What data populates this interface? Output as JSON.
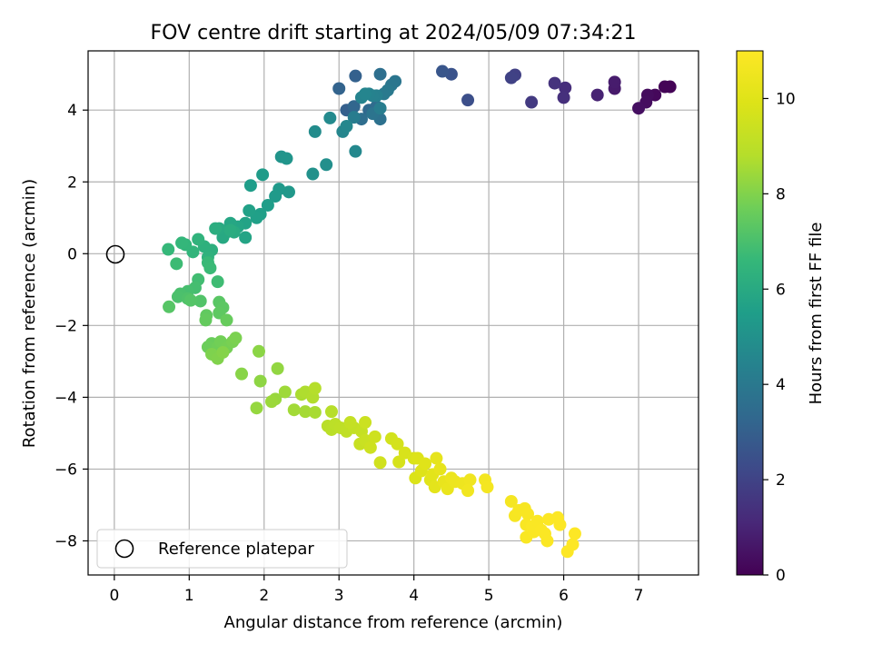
{
  "chart_data": {
    "type": "scatter",
    "title": "FOV centre drift starting at 2024/05/09 07:34:21",
    "xlabel": "Angular distance from reference (arcmin)",
    "ylabel": "Rotation from reference (arcmin)",
    "xlim": [
      -0.35,
      7.8
    ],
    "ylim": [
      -8.95,
      5.65
    ],
    "xticks": [
      "0",
      "1",
      "2",
      "3",
      "4",
      "5",
      "6",
      "7"
    ],
    "yticks": [
      "−8",
      "−6",
      "−4",
      "−2",
      "0",
      "2",
      "4"
    ],
    "grid": true,
    "legend": {
      "placement": "lower-left",
      "entries": [
        {
          "label": "Reference platepar",
          "marker": "open-circle"
        }
      ]
    },
    "colorbar": {
      "label": "Hours from first FF file",
      "range": [
        0,
        11
      ],
      "ticks": [
        "0",
        "2",
        "4",
        "6",
        "8",
        "10"
      ],
      "colormap": "viridis"
    },
    "reference_point": {
      "x": 0,
      "y": 0
    },
    "points": [
      {
        "x": 7.42,
        "y": 4.65,
        "h": 0.05
      },
      {
        "x": 7.35,
        "y": 4.65,
        "h": 0.1
      },
      {
        "x": 7.22,
        "y": 4.42,
        "h": 0.2
      },
      {
        "x": 7.12,
        "y": 4.42,
        "h": 0.3
      },
      {
        "x": 7.1,
        "y": 4.22,
        "h": 0.35
      },
      {
        "x": 7.0,
        "y": 4.05,
        "h": 0.4
      },
      {
        "x": 6.68,
        "y": 4.6,
        "h": 0.7
      },
      {
        "x": 6.68,
        "y": 4.78,
        "h": 0.75
      },
      {
        "x": 6.45,
        "y": 4.42,
        "h": 0.95
      },
      {
        "x": 6.02,
        "y": 4.62,
        "h": 1.3
      },
      {
        "x": 6.0,
        "y": 4.35,
        "h": 1.35
      },
      {
        "x": 5.88,
        "y": 4.75,
        "h": 1.45
      },
      {
        "x": 5.57,
        "y": 4.22,
        "h": 1.7
      },
      {
        "x": 5.35,
        "y": 4.98,
        "h": 1.9
      },
      {
        "x": 5.3,
        "y": 4.9,
        "h": 1.95
      },
      {
        "x": 4.72,
        "y": 4.28,
        "h": 2.4
      },
      {
        "x": 4.5,
        "y": 5.0,
        "h": 2.55
      },
      {
        "x": 4.38,
        "y": 5.08,
        "h": 2.65
      },
      {
        "x": 3.1,
        "y": 4.0,
        "h": 3.0
      },
      {
        "x": 3.22,
        "y": 4.95,
        "h": 3.05
      },
      {
        "x": 3.0,
        "y": 4.6,
        "h": 3.15
      },
      {
        "x": 3.2,
        "y": 4.1,
        "h": 3.25
      },
      {
        "x": 3.4,
        "y": 4.0,
        "h": 3.35
      },
      {
        "x": 3.5,
        "y": 4.1,
        "h": 3.45
      },
      {
        "x": 3.3,
        "y": 3.75,
        "h": 3.55
      },
      {
        "x": 3.55,
        "y": 5.0,
        "h": 3.6
      },
      {
        "x": 3.55,
        "y": 3.75,
        "h": 3.7
      },
      {
        "x": 3.45,
        "y": 3.9,
        "h": 3.8
      },
      {
        "x": 3.75,
        "y": 4.8,
        "h": 3.85
      },
      {
        "x": 3.7,
        "y": 4.7,
        "h": 3.9
      },
      {
        "x": 3.65,
        "y": 4.55,
        "h": 4.0
      },
      {
        "x": 3.6,
        "y": 4.45,
        "h": 4.05
      },
      {
        "x": 3.2,
        "y": 3.8,
        "h": 4.15
      },
      {
        "x": 3.55,
        "y": 4.05,
        "h": 4.2
      },
      {
        "x": 3.5,
        "y": 4.4,
        "h": 4.3
      },
      {
        "x": 3.45,
        "y": 4.4,
        "h": 4.35
      },
      {
        "x": 3.4,
        "y": 4.45,
        "h": 4.4
      },
      {
        "x": 3.3,
        "y": 4.35,
        "h": 4.45
      },
      {
        "x": 3.35,
        "y": 4.45,
        "h": 4.5
      },
      {
        "x": 3.05,
        "y": 3.4,
        "h": 4.55
      },
      {
        "x": 3.1,
        "y": 3.55,
        "h": 4.6
      },
      {
        "x": 3.22,
        "y": 2.85,
        "h": 4.65
      },
      {
        "x": 2.88,
        "y": 3.78,
        "h": 4.7
      },
      {
        "x": 2.68,
        "y": 3.4,
        "h": 4.8
      },
      {
        "x": 2.83,
        "y": 2.48,
        "h": 4.9
      },
      {
        "x": 2.65,
        "y": 2.22,
        "h": 5.0
      },
      {
        "x": 2.23,
        "y": 2.7,
        "h": 5.1
      },
      {
        "x": 2.3,
        "y": 2.65,
        "h": 5.15
      },
      {
        "x": 2.33,
        "y": 1.72,
        "h": 5.25
      },
      {
        "x": 2.2,
        "y": 1.8,
        "h": 5.3
      },
      {
        "x": 2.15,
        "y": 1.6,
        "h": 5.35
      },
      {
        "x": 1.98,
        "y": 2.2,
        "h": 5.4
      },
      {
        "x": 1.82,
        "y": 1.9,
        "h": 5.45
      },
      {
        "x": 2.05,
        "y": 1.35,
        "h": 5.5
      },
      {
        "x": 1.95,
        "y": 1.1,
        "h": 5.55
      },
      {
        "x": 1.9,
        "y": 1.0,
        "h": 5.6
      },
      {
        "x": 1.8,
        "y": 1.2,
        "h": 5.65
      },
      {
        "x": 1.75,
        "y": 0.85,
        "h": 5.7
      },
      {
        "x": 1.75,
        "y": 0.45,
        "h": 5.75
      },
      {
        "x": 1.65,
        "y": 0.75,
        "h": 5.8
      },
      {
        "x": 1.55,
        "y": 0.85,
        "h": 5.85
      },
      {
        "x": 1.5,
        "y": 0.6,
        "h": 5.9
      },
      {
        "x": 1.45,
        "y": 0.45,
        "h": 5.95
      },
      {
        "x": 1.4,
        "y": 0.7,
        "h": 6.0
      },
      {
        "x": 1.6,
        "y": 0.6,
        "h": 6.05
      },
      {
        "x": 1.55,
        "y": 0.65,
        "h": 6.1
      },
      {
        "x": 1.35,
        "y": 0.7,
        "h": 6.15
      },
      {
        "x": 1.3,
        "y": 0.1,
        "h": 6.25
      },
      {
        "x": 1.2,
        "y": 0.2,
        "h": 6.3
      },
      {
        "x": 1.25,
        "y": -0.1,
        "h": 6.35
      },
      {
        "x": 1.12,
        "y": 0.4,
        "h": 6.4
      },
      {
        "x": 1.05,
        "y": 0.05,
        "h": 6.45
      },
      {
        "x": 0.95,
        "y": 0.25,
        "h": 6.5
      },
      {
        "x": 0.9,
        "y": 0.3,
        "h": 6.55
      },
      {
        "x": 0.72,
        "y": 0.12,
        "h": 6.6
      },
      {
        "x": 1.25,
        "y": -0.25,
        "h": 6.65
      },
      {
        "x": 1.28,
        "y": -0.4,
        "h": 6.7
      },
      {
        "x": 0.83,
        "y": -0.28,
        "h": 6.75
      },
      {
        "x": 1.38,
        "y": -0.78,
        "h": 6.8
      },
      {
        "x": 1.12,
        "y": -0.72,
        "h": 6.85
      },
      {
        "x": 1.08,
        "y": -0.95,
        "h": 6.9
      },
      {
        "x": 0.98,
        "y": -1.05,
        "h": 6.95
      },
      {
        "x": 0.88,
        "y": -1.12,
        "h": 7.0
      },
      {
        "x": 0.85,
        "y": -1.2,
        "h": 7.05
      },
      {
        "x": 0.98,
        "y": -1.25,
        "h": 7.1
      },
      {
        "x": 1.15,
        "y": -1.32,
        "h": 7.15
      },
      {
        "x": 1.02,
        "y": -1.3,
        "h": 7.2
      },
      {
        "x": 0.73,
        "y": -1.48,
        "h": 7.25
      },
      {
        "x": 1.4,
        "y": -1.35,
        "h": 7.3
      },
      {
        "x": 1.45,
        "y": -1.5,
        "h": 7.35
      },
      {
        "x": 1.4,
        "y": -1.65,
        "h": 7.4
      },
      {
        "x": 1.23,
        "y": -1.72,
        "h": 7.45
      },
      {
        "x": 1.22,
        "y": -1.85,
        "h": 7.5
      },
      {
        "x": 1.5,
        "y": -1.85,
        "h": 7.55
      },
      {
        "x": 1.3,
        "y": -2.5,
        "h": 7.6
      },
      {
        "x": 1.25,
        "y": -2.6,
        "h": 7.65
      },
      {
        "x": 1.38,
        "y": -2.6,
        "h": 7.7
      },
      {
        "x": 1.42,
        "y": -2.45,
        "h": 7.75
      },
      {
        "x": 1.5,
        "y": -2.62,
        "h": 7.8
      },
      {
        "x": 1.58,
        "y": -2.45,
        "h": 7.85
      },
      {
        "x": 1.62,
        "y": -2.35,
        "h": 7.9
      },
      {
        "x": 1.3,
        "y": -2.8,
        "h": 7.95
      },
      {
        "x": 1.38,
        "y": -2.92,
        "h": 8.0
      },
      {
        "x": 1.45,
        "y": -2.75,
        "h": 8.05
      },
      {
        "x": 1.7,
        "y": -3.35,
        "h": 8.1
      },
      {
        "x": 1.93,
        "y": -2.72,
        "h": 8.15
      },
      {
        "x": 1.95,
        "y": -3.55,
        "h": 8.2
      },
      {
        "x": 2.18,
        "y": -3.2,
        "h": 8.25
      },
      {
        "x": 1.9,
        "y": -4.3,
        "h": 8.3
      },
      {
        "x": 2.15,
        "y": -4.05,
        "h": 8.35
      },
      {
        "x": 2.1,
        "y": -4.12,
        "h": 8.4
      },
      {
        "x": 2.28,
        "y": -3.85,
        "h": 8.45
      },
      {
        "x": 2.4,
        "y": -4.35,
        "h": 8.5
      },
      {
        "x": 2.55,
        "y": -4.4,
        "h": 8.55
      },
      {
        "x": 2.68,
        "y": -4.42,
        "h": 8.6
      },
      {
        "x": 2.5,
        "y": -3.92,
        "h": 8.65
      },
      {
        "x": 2.55,
        "y": -3.85,
        "h": 8.7
      },
      {
        "x": 2.65,
        "y": -4.0,
        "h": 8.75
      },
      {
        "x": 2.68,
        "y": -3.75,
        "h": 8.8
      },
      {
        "x": 2.9,
        "y": -4.4,
        "h": 8.85
      },
      {
        "x": 2.85,
        "y": -4.8,
        "h": 8.9
      },
      {
        "x": 2.9,
        "y": -4.9,
        "h": 8.95
      },
      {
        "x": 2.95,
        "y": -4.75,
        "h": 9.0
      },
      {
        "x": 3.02,
        "y": -4.85,
        "h": 9.05
      },
      {
        "x": 3.1,
        "y": -4.95,
        "h": 9.1
      },
      {
        "x": 3.2,
        "y": -4.85,
        "h": 9.15
      },
      {
        "x": 3.15,
        "y": -4.7,
        "h": 9.2
      },
      {
        "x": 3.3,
        "y": -4.95,
        "h": 9.25
      },
      {
        "x": 3.28,
        "y": -5.3,
        "h": 9.3
      },
      {
        "x": 3.35,
        "y": -5.2,
        "h": 9.35
      },
      {
        "x": 3.35,
        "y": -4.7,
        "h": 9.4
      },
      {
        "x": 3.42,
        "y": -5.4,
        "h": 9.45
      },
      {
        "x": 3.48,
        "y": -5.1,
        "h": 9.5
      },
      {
        "x": 3.55,
        "y": -5.82,
        "h": 9.55
      },
      {
        "x": 3.7,
        "y": -5.15,
        "h": 9.6
      },
      {
        "x": 3.78,
        "y": -5.3,
        "h": 9.65
      },
      {
        "x": 3.8,
        "y": -5.8,
        "h": 9.7
      },
      {
        "x": 3.88,
        "y": -5.55,
        "h": 9.75
      },
      {
        "x": 4.0,
        "y": -5.7,
        "h": 9.8
      },
      {
        "x": 4.02,
        "y": -6.25,
        "h": 9.85
      },
      {
        "x": 4.05,
        "y": -5.7,
        "h": 9.9
      },
      {
        "x": 4.1,
        "y": -6.05,
        "h": 9.95
      },
      {
        "x": 4.15,
        "y": -5.85,
        "h": 10.0
      },
      {
        "x": 4.22,
        "y": -6.3,
        "h": 10.05
      },
      {
        "x": 4.25,
        "y": -6.15,
        "h": 10.1
      },
      {
        "x": 4.28,
        "y": -6.5,
        "h": 10.15
      },
      {
        "x": 4.3,
        "y": -5.7,
        "h": 10.2
      },
      {
        "x": 4.35,
        "y": -6.0,
        "h": 10.25
      },
      {
        "x": 4.4,
        "y": -6.35,
        "h": 10.3
      },
      {
        "x": 4.45,
        "y": -6.55,
        "h": 10.35
      },
      {
        "x": 4.5,
        "y": -6.25,
        "h": 10.4
      },
      {
        "x": 4.55,
        "y": -6.35,
        "h": 10.45
      },
      {
        "x": 4.65,
        "y": -6.4,
        "h": 10.5
      },
      {
        "x": 4.75,
        "y": -6.3,
        "h": 10.55
      },
      {
        "x": 4.72,
        "y": -6.6,
        "h": 10.6
      },
      {
        "x": 4.95,
        "y": -6.3,
        "h": 10.65
      },
      {
        "x": 4.98,
        "y": -6.5,
        "h": 10.7
      },
      {
        "x": 5.3,
        "y": -6.9,
        "h": 10.72
      },
      {
        "x": 5.35,
        "y": -7.3,
        "h": 10.75
      },
      {
        "x": 5.4,
        "y": -7.15,
        "h": 10.78
      },
      {
        "x": 5.48,
        "y": -7.1,
        "h": 10.8
      },
      {
        "x": 5.52,
        "y": -7.25,
        "h": 10.82
      },
      {
        "x": 5.5,
        "y": -7.55,
        "h": 10.85
      },
      {
        "x": 5.5,
        "y": -7.9,
        "h": 10.87
      },
      {
        "x": 5.58,
        "y": -7.6,
        "h": 10.88
      },
      {
        "x": 5.6,
        "y": -7.75,
        "h": 10.9
      },
      {
        "x": 5.65,
        "y": -7.45,
        "h": 10.91
      },
      {
        "x": 5.7,
        "y": -7.7,
        "h": 10.92
      },
      {
        "x": 5.75,
        "y": -7.8,
        "h": 10.93
      },
      {
        "x": 5.78,
        "y": -8.0,
        "h": 10.94
      },
      {
        "x": 5.8,
        "y": -7.4,
        "h": 10.95
      },
      {
        "x": 5.92,
        "y": -7.35,
        "h": 10.96
      },
      {
        "x": 5.95,
        "y": -7.55,
        "h": 10.97
      },
      {
        "x": 6.05,
        "y": -8.3,
        "h": 10.98
      },
      {
        "x": 6.12,
        "y": -8.1,
        "h": 10.99
      },
      {
        "x": 6.15,
        "y": -7.8,
        "h": 11.0
      }
    ]
  }
}
